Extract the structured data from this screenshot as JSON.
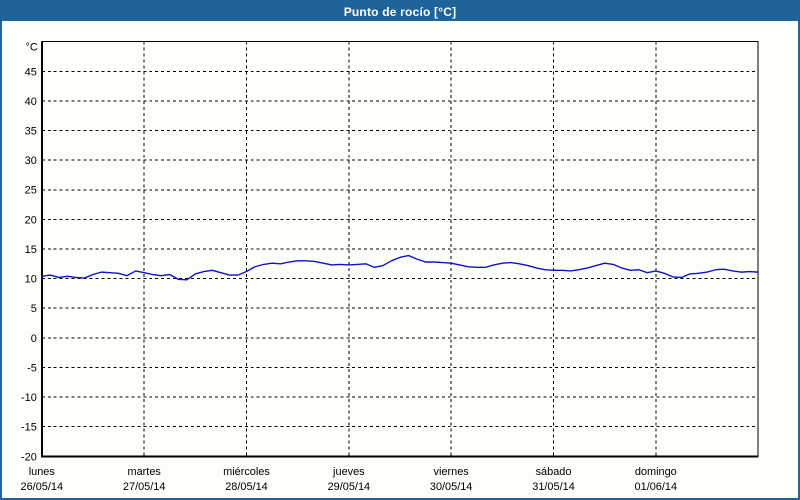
{
  "window": {
    "title": "Punto de rocío [°C]"
  },
  "colors": {
    "titlebar_bg": "#1e6399",
    "titlebar_text": "#ffffff",
    "frame_border": "#1e6399",
    "panel_bg": "#fcfef9",
    "grid": "#000000",
    "line": "#1212c4",
    "text": "#000000"
  },
  "chart_data": {
    "type": "line",
    "title": "Punto de rocío [°C]",
    "xlabel": "",
    "ylabel": "°C",
    "ymin": -20,
    "ymax": 50,
    "yticks": [
      45,
      40,
      35,
      30,
      25,
      20,
      15,
      10,
      5,
      0,
      -5,
      -10,
      -15,
      -20
    ],
    "grid": "dashed",
    "legend_position": "none",
    "x_axis": {
      "days": [
        {
          "name": "lunes",
          "date": "26/05/14"
        },
        {
          "name": "martes",
          "date": "27/05/14"
        },
        {
          "name": "miércoles",
          "date": "28/05/14"
        },
        {
          "name": "jueves",
          "date": "29/05/14"
        },
        {
          "name": "viernes",
          "date": "30/05/14"
        },
        {
          "name": "sábado",
          "date": "31/05/14"
        },
        {
          "name": "domingo",
          "date": "01/06/14"
        }
      ]
    },
    "series": [
      {
        "name": "Punto de rocío",
        "unit": "°C",
        "color": "#1212c4",
        "samples_per_day": 12,
        "values": [
          10.4,
          10.6,
          10.2,
          10.4,
          10.2,
          10.1,
          10.7,
          11.1,
          11.0,
          10.9,
          10.5,
          11.3,
          11.0,
          10.7,
          10.5,
          10.7,
          9.9,
          9.8,
          10.8,
          11.2,
          11.4,
          11.0,
          10.6,
          10.6,
          11.2,
          12.0,
          12.4,
          12.6,
          12.5,
          12.8,
          13.0,
          13.0,
          12.9,
          12.6,
          12.3,
          12.4,
          12.3,
          12.4,
          12.5,
          11.9,
          12.2,
          13.0,
          13.6,
          13.9,
          13.3,
          12.8,
          12.8,
          12.7,
          12.6,
          12.3,
          12.0,
          11.9,
          11.9,
          12.3,
          12.6,
          12.7,
          12.5,
          12.2,
          11.8,
          11.5,
          11.4,
          11.4,
          11.3,
          11.5,
          11.8,
          12.2,
          12.6,
          12.4,
          11.8,
          11.4,
          11.5,
          11.0,
          11.3,
          10.9,
          10.3,
          10.2,
          10.8,
          10.9,
          11.1,
          11.5,
          11.6,
          11.3,
          11.1,
          11.2,
          11.1
        ]
      }
    ]
  }
}
